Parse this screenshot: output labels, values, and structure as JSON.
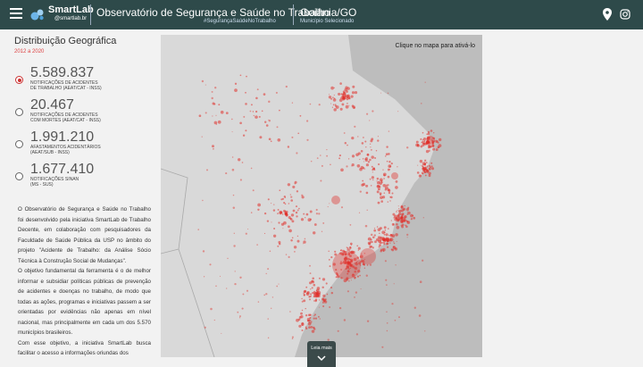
{
  "header": {
    "logo_name": "SmartLab",
    "logo_sub": "@smartlab.br",
    "title": "Observatório de Segurança e Saúde no Trabalho",
    "hashtag": "#SegurançaSaúdeNoTrabalho",
    "place": "Goiânia/GO",
    "place_sub": "Município Selecionado",
    "icons": [
      "menu-icon",
      "map-pin-icon",
      "instagram-icon"
    ]
  },
  "sidebar": {
    "title": "Distribuição Geográfica",
    "period": "2012 a 2020",
    "stats": [
      {
        "value": "5.589.837",
        "label": "NOTIFICAÇÕES DE ACIDENTES\nDE TRABALHO (AEAT/CAT - INSS)",
        "selected": true
      },
      {
        "value": "20.467",
        "label": "NOTIFICAÇÕES DE ACIDENTES\nCOM MORTES (AEAT/CAT - INSS)",
        "selected": false
      },
      {
        "value": "1.991.210",
        "label": "AFASTAMENTOS ACIDENTÁRIOS\n(AEAT/SUB - INSS)",
        "selected": false
      },
      {
        "value": "1.677.410",
        "label": "NOTIFICAÇÕES SINAN\n(MS - SUS)",
        "selected": false
      }
    ],
    "about": [
      "O Observatório de Segurança e Saúde no Trabalho foi desenvolvido pela iniciativa SmartLab de Trabalho Decente, em colaboração com pesquisadores da Faculdade de Saúde Pública da USP no âmbito do projeto \"Acidente de Trabalho: da Análise Sócio Técnica à Construção Social de Mudanças\".",
      "O objetivo fundamental da ferramenta é o de melhor informar e subsidiar políticas públicas de prevenção de acidentes e doenças no trabalho, de modo que todas as ações, programas e iniciativas passem a ser orientadas por evidências não apenas em nível nacional, mas principalmente em cada um dos 5.570 municípios brasileiros.",
      "Com esse objetivo, a iniciativa SmartLab busca facilitar o acesso a informações oriundas dos"
    ]
  },
  "map": {
    "hint": "Clique no mapa para ativá-lo",
    "land_color": "#d9d9d9",
    "ocean_color": "#bdbdbd",
    "point_color": "#e0302a"
  },
  "more": {
    "label": "Leia mais"
  }
}
